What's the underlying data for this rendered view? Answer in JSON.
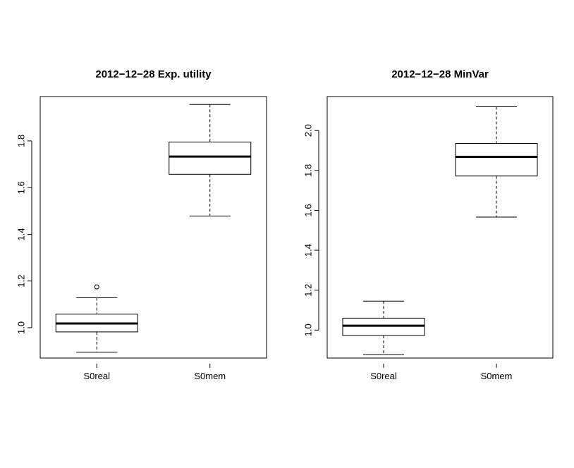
{
  "chart_data": [
    {
      "type": "boxplot",
      "title": "2012−12−28 Exp. utility",
      "xlabel": "",
      "ylabel": "",
      "categories": [
        "S0real",
        "S0mem"
      ],
      "yticks": [
        1.0,
        1.2,
        1.4,
        1.6,
        1.8
      ],
      "ytick_labels": [
        "1.0",
        "1.2",
        "1.4",
        "1.6",
        "1.8"
      ],
      "ylim": [
        0.87,
        1.99
      ],
      "boxes": [
        {
          "category": "S0real",
          "whisker_low": 0.895,
          "q1": 0.982,
          "median": 1.018,
          "q3": 1.058,
          "whisker_high": 1.128,
          "outliers": [
            1.175
          ]
        },
        {
          "category": "S0mem",
          "whisker_low": 1.478,
          "q1": 1.657,
          "median": 1.733,
          "q3": 1.795,
          "whisker_high": 1.956,
          "outliers": []
        }
      ]
    },
    {
      "type": "boxplot",
      "title": "2012−12−28 MinVar",
      "xlabel": "",
      "ylabel": "",
      "categories": [
        "S0real",
        "S0mem"
      ],
      "yticks": [
        1.0,
        1.2,
        1.4,
        1.6,
        1.8,
        2.0
      ],
      "ytick_labels": [
        "1.0",
        "1.2",
        "1.4",
        "1.6",
        "1.8",
        "2.0"
      ],
      "ylim": [
        0.86,
        2.17
      ],
      "boxes": [
        {
          "category": "S0real",
          "whisker_low": 0.877,
          "q1": 0.973,
          "median": 1.022,
          "q3": 1.06,
          "whisker_high": 1.145,
          "outliers": []
        },
        {
          "category": "S0mem",
          "whisker_low": 1.566,
          "q1": 1.772,
          "median": 1.868,
          "q3": 1.935,
          "whisker_high": 2.119,
          "outliers": []
        }
      ]
    }
  ]
}
